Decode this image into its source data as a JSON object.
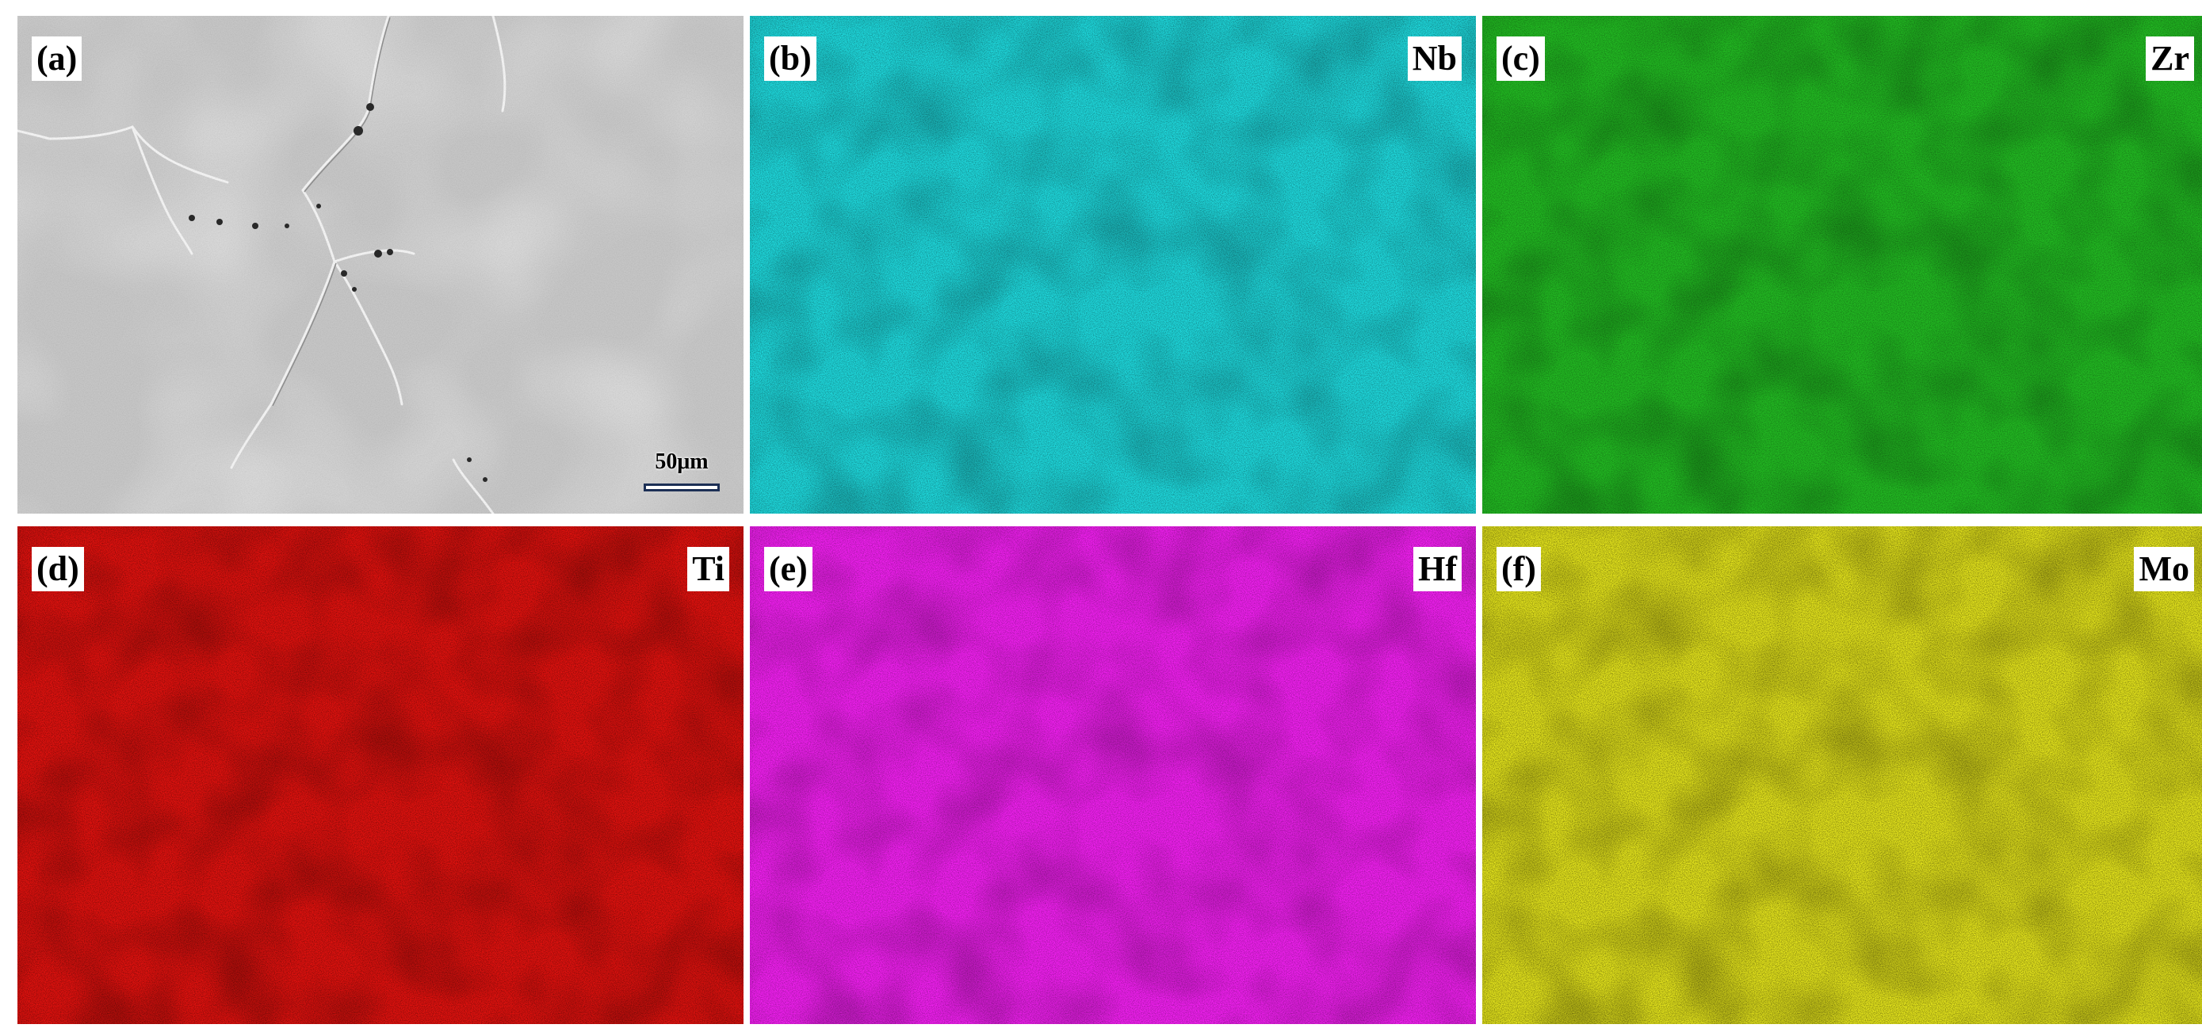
{
  "figure": {
    "panels": [
      {
        "letter": "(a)",
        "element": "",
        "color": "#c9c9c9",
        "scale_bar": "50μm"
      },
      {
        "letter": "(b)",
        "element": "Nb",
        "color": "#1fe0e3"
      },
      {
        "letter": "(c)",
        "element": "Zr",
        "color": "#1cb81c"
      },
      {
        "letter": "(d)",
        "element": "Ti",
        "color": "#e3100e"
      },
      {
        "letter": "(e)",
        "element": "Hf",
        "color": "#f21ef0"
      },
      {
        "letter": "(f)",
        "element": "Mo",
        "color": "#e6e61a"
      }
    ]
  }
}
